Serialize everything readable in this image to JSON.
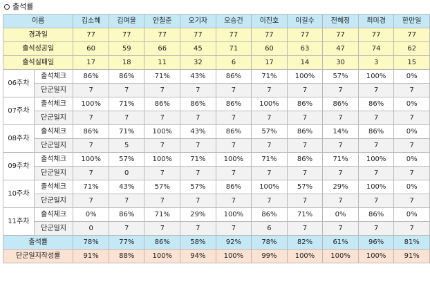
{
  "section_title": "출석률",
  "header": {
    "label": "이름",
    "students": [
      "김소혜",
      "김여울",
      "안철준",
      "오기자",
      "오승건",
      "이진호",
      "이길수",
      "전혜정",
      "최미경",
      "한만일"
    ]
  },
  "summary_rows": [
    {
      "label": "경과일",
      "values": [
        "77",
        "77",
        "77",
        "77",
        "77",
        "77",
        "77",
        "77",
        "77",
        "77"
      ]
    },
    {
      "label": "출석성공일",
      "values": [
        "60",
        "59",
        "66",
        "45",
        "71",
        "60",
        "63",
        "47",
        "74",
        "62"
      ]
    },
    {
      "label": "출석실패일",
      "values": [
        "17",
        "18",
        "11",
        "32",
        "6",
        "17",
        "14",
        "30",
        "3",
        "15"
      ]
    }
  ],
  "weeks": [
    {
      "label": "06주차",
      "check_label": "출석체크",
      "check": [
        "86%",
        "86%",
        "71%",
        "43%",
        "86%",
        "71%",
        "100%",
        "57%",
        "100%",
        "0%"
      ],
      "journal_label": "단군일지",
      "journal": [
        "7",
        "7",
        "7",
        "7",
        "7",
        "7",
        "7",
        "7",
        "7",
        "7"
      ]
    },
    {
      "label": "07주차",
      "check_label": "출석체크",
      "check": [
        "100%",
        "71%",
        "86%",
        "86%",
        "86%",
        "100%",
        "86%",
        "86%",
        "86%",
        "0%"
      ],
      "journal_label": "단군일지",
      "journal": [
        "7",
        "7",
        "7",
        "7",
        "7",
        "7",
        "7",
        "7",
        "7",
        "7"
      ]
    },
    {
      "label": "08주차",
      "check_label": "출석체크",
      "check": [
        "86%",
        "71%",
        "100%",
        "43%",
        "86%",
        "57%",
        "86%",
        "14%",
        "86%",
        "0%"
      ],
      "journal_label": "단군일지",
      "journal": [
        "7",
        "5",
        "7",
        "7",
        "7",
        "7",
        "7",
        "7",
        "7",
        "7"
      ]
    },
    {
      "label": "09주차",
      "check_label": "출석체크",
      "check": [
        "100%",
        "57%",
        "100%",
        "71%",
        "100%",
        "71%",
        "86%",
        "71%",
        "100%",
        "0%"
      ],
      "journal_label": "단군일지",
      "journal": [
        "7",
        "0",
        "7",
        "7",
        "7",
        "7",
        "7",
        "7",
        "7",
        "7"
      ]
    },
    {
      "label": "10주차",
      "check_label": "출석체크",
      "check": [
        "71%",
        "43%",
        "57%",
        "57%",
        "86%",
        "100%",
        "57%",
        "29%",
        "100%",
        "0%"
      ],
      "journal_label": "단군일지",
      "journal": [
        "7",
        "7",
        "7",
        "7",
        "7",
        "7",
        "7",
        "7",
        "7",
        "7"
      ]
    },
    {
      "label": "11주차",
      "check_label": "출석체크",
      "check": [
        "0%",
        "86%",
        "71%",
        "29%",
        "100%",
        "86%",
        "71%",
        "0%",
        "86%",
        "0%"
      ],
      "journal_label": "단군일지",
      "journal": [
        "0",
        "7",
        "7",
        "7",
        "7",
        "6",
        "7",
        "7",
        "7",
        "7"
      ]
    }
  ],
  "attendance_rate": {
    "label": "출석률",
    "values": [
      "78%",
      "77%",
      "86%",
      "58%",
      "92%",
      "78%",
      "82%",
      "61%",
      "96%",
      "81%"
    ]
  },
  "journal_rate": {
    "label": "단군일지작성률",
    "values": [
      "91%",
      "88%",
      "100%",
      "94%",
      "100%",
      "99%",
      "100%",
      "100%",
      "100%",
      "91%"
    ]
  },
  "colors": {
    "header_bg": "#c5e8f7",
    "summary_bg": "#fdf9c2",
    "rate_bg": "#c5e8f7",
    "journal_rate_bg": "#fbe2d3",
    "border": "#b9b9b9"
  }
}
